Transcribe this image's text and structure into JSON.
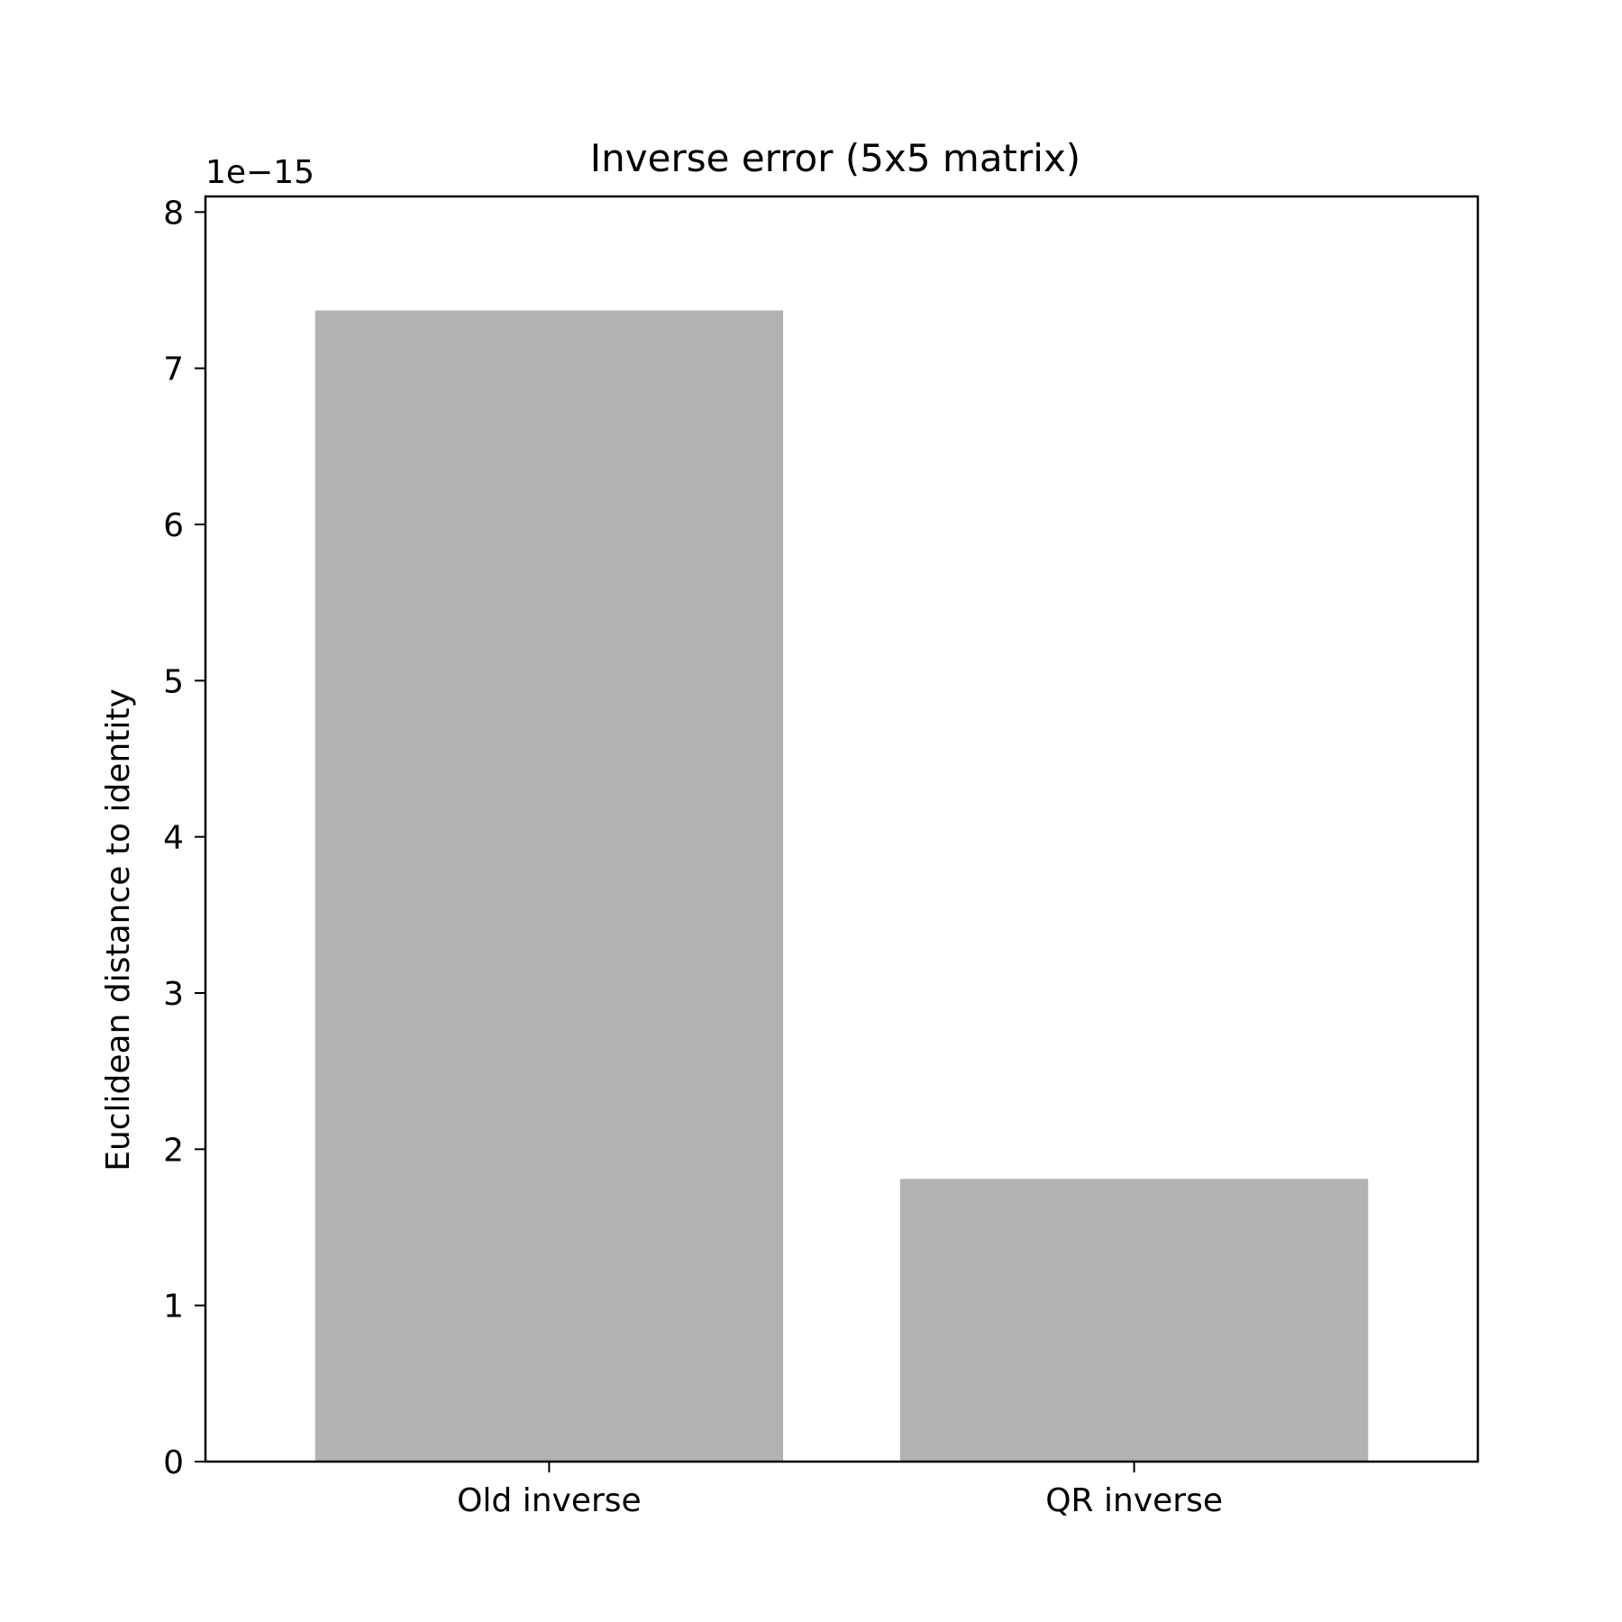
{
  "chart_data": {
    "type": "bar",
    "title": "Inverse error (5x5 matrix)",
    "xlabel": "",
    "ylabel": "Euclidean distance to identity",
    "y_offset_label": "1e−15",
    "y_scale": 1e-15,
    "categories": [
      "Old inverse",
      "QR inverse"
    ],
    "values": [
      7.37e-15,
      1.81e-15
    ],
    "ylim": [
      0,
      8.1e-15
    ],
    "yticks": [
      0,
      1,
      2,
      3,
      4,
      5,
      6,
      7,
      8
    ],
    "bar_color": "#b2b2b2",
    "grid": false,
    "legend": "none"
  }
}
